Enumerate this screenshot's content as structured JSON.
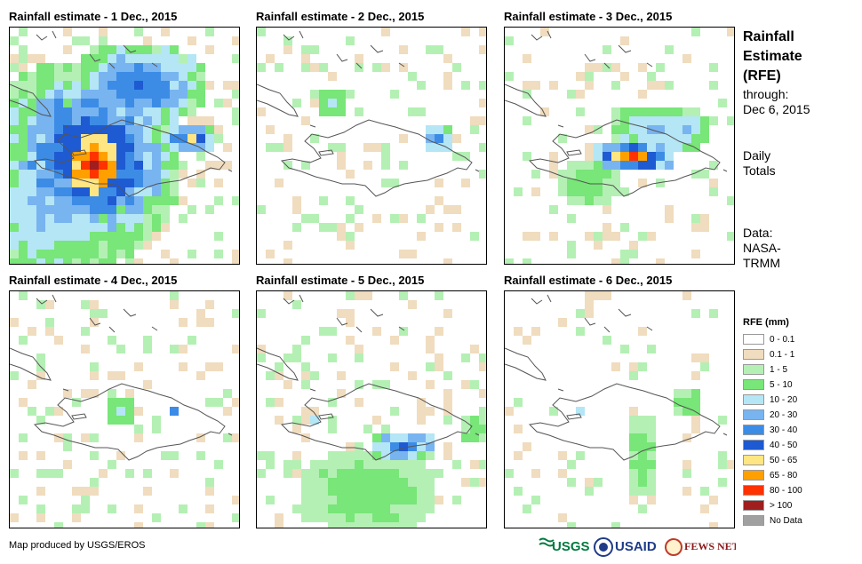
{
  "panels": [
    {
      "title": "Rainfall estimate - 1 Dec., 2015"
    },
    {
      "title": "Rainfall estimate - 2 Dec., 2015"
    },
    {
      "title": "Rainfall estimate - 3 Dec., 2015"
    },
    {
      "title": "Rainfall estimate - 4 Dec., 2015"
    },
    {
      "title": "Rainfall estimate - 5 Dec., 2015"
    },
    {
      "title": "Rainfall estimate - 6 Dec., 2015"
    }
  ],
  "side": {
    "title_lines": [
      "Rainfall",
      "Estimate",
      "(RFE)"
    ],
    "through_lines": [
      "through:",
      "Dec 6, 2015"
    ],
    "totals_lines": [
      "Daily",
      "Totals"
    ],
    "data_lines": [
      "Data:",
      "NASA-",
      "TRMM"
    ]
  },
  "legend": {
    "title": "RFE (mm)",
    "items": [
      {
        "label": "0 - 0.1",
        "color": "#ffffff"
      },
      {
        "label": "0.1 - 1",
        "color": "#f0dcbe"
      },
      {
        "label": "1 - 5",
        "color": "#b4f0b4"
      },
      {
        "label": "5 - 10",
        "color": "#78e678"
      },
      {
        "label": "10 - 20",
        "color": "#b4e6f5"
      },
      {
        "label": "20 - 30",
        "color": "#78b4f0"
      },
      {
        "label": "30 - 40",
        "color": "#3c8ce6"
      },
      {
        "label": "40 - 50",
        "color": "#1e5ad2"
      },
      {
        "label": "50 - 65",
        "color": "#ffe682"
      },
      {
        "label": "65 - 80",
        "color": "#ffa000"
      },
      {
        "label": "80 - 100",
        "color": "#ff3200"
      },
      {
        "label": "> 100",
        "color": "#a01e1e"
      },
      {
        "label": "No Data",
        "color": "#a0a0a0"
      }
    ]
  },
  "credit": "Map produced by USGS/EROS",
  "logos": {
    "usgs": "USGS",
    "usaid": "USAID",
    "fewsnet": "FEWS NET"
  }
}
